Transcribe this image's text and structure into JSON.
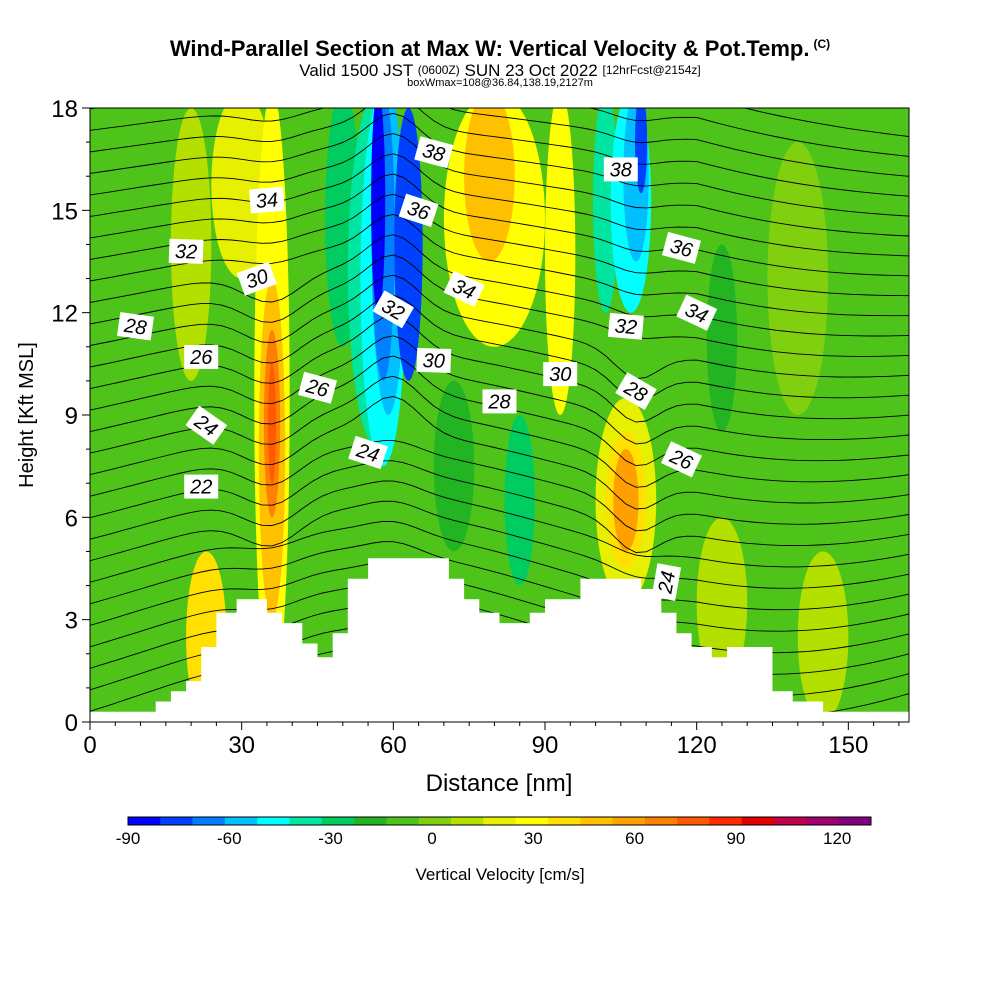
{
  "title": {
    "main": "Wind-Parallel Section at Max W: Vertical Velocity & Pot.Temp.",
    "copyright_mark": "(C)",
    "valid_prefix": "Valid 1500 JST",
    "valid_utc": "(0600Z)",
    "valid_date": "SUN 23 Oct 2022",
    "forecast_note": "[12hrFcst@2154z]",
    "box_info": "boxWmax=108@36.84,138.19,2127m"
  },
  "chart_data": {
    "type": "heatmap",
    "xlabel": "Distance [nm]",
    "ylabel": "Height [Kft MSL]",
    "xlim": [
      0,
      162
    ],
    "ylim": [
      0,
      18
    ],
    "x_ticks": [
      0,
      30,
      60,
      90,
      120,
      150
    ],
    "y_ticks": [
      0,
      3,
      6,
      9,
      12,
      15,
      18
    ],
    "grid": false,
    "colorbar": {
      "label": "Vertical Velocity [cm/s]",
      "placement": "bottom",
      "range": [
        -90,
        130
      ],
      "tick_values": [
        -90,
        -60,
        -30,
        0,
        30,
        60,
        90,
        120
      ],
      "colors": [
        "#0000ff",
        "#0040ff",
        "#0080ff",
        "#00c0ff",
        "#00ffff",
        "#00e6a0",
        "#00cc60",
        "#22b422",
        "#4ec41a",
        "#80d010",
        "#b4e000",
        "#e6f000",
        "#ffff00",
        "#ffe000",
        "#ffc000",
        "#ffa000",
        "#ff8000",
        "#ff5a00",
        "#ff2a00",
        "#e00000",
        "#c0004a",
        "#a00070",
        "#800080"
      ]
    },
    "terrain_height_kft": [
      [
        0,
        0.3
      ],
      [
        13,
        0.3
      ],
      [
        13,
        0.6
      ],
      [
        16,
        0.6
      ],
      [
        16,
        0.9
      ],
      [
        19,
        0.9
      ],
      [
        19,
        1.2
      ],
      [
        22,
        1.2
      ],
      [
        22,
        2.2
      ],
      [
        25,
        2.2
      ],
      [
        25,
        3.2
      ],
      [
        29,
        3.2
      ],
      [
        29,
        3.6
      ],
      [
        35,
        3.6
      ],
      [
        35,
        3.2
      ],
      [
        38,
        3.2
      ],
      [
        38,
        2.9
      ],
      [
        42,
        2.9
      ],
      [
        42,
        2.3
      ],
      [
        45,
        2.3
      ],
      [
        45,
        1.9
      ],
      [
        48,
        1.9
      ],
      [
        48,
        2.6
      ],
      [
        51,
        2.6
      ],
      [
        51,
        4.2
      ],
      [
        55,
        4.2
      ],
      [
        55,
        4.8
      ],
      [
        71,
        4.8
      ],
      [
        71,
        4.2
      ],
      [
        74,
        4.2
      ],
      [
        74,
        3.6
      ],
      [
        77,
        3.6
      ],
      [
        77,
        3.2
      ],
      [
        81,
        3.2
      ],
      [
        81,
        2.9
      ],
      [
        87,
        2.9
      ],
      [
        87,
        3.2
      ],
      [
        90,
        3.2
      ],
      [
        90,
        3.6
      ],
      [
        97,
        3.6
      ],
      [
        97,
        4.2
      ],
      [
        109,
        4.2
      ],
      [
        109,
        3.9
      ],
      [
        113,
        3.9
      ],
      [
        113,
        3.2
      ],
      [
        116,
        3.2
      ],
      [
        116,
        2.6
      ],
      [
        119,
        2.6
      ],
      [
        119,
        2.2
      ],
      [
        123,
        2.2
      ],
      [
        123,
        1.9
      ],
      [
        126,
        1.9
      ],
      [
        126,
        2.2
      ],
      [
        135,
        2.2
      ],
      [
        135,
        0.9
      ],
      [
        139,
        0.9
      ],
      [
        139,
        0.6
      ],
      [
        145,
        0.6
      ],
      [
        145,
        0.3
      ],
      [
        162,
        0.3
      ]
    ],
    "updraft_cores": [
      {
        "x": 36,
        "y_range": [
          3.5,
          12
        ],
        "peak_cm_s": 100
      },
      {
        "x": 106,
        "y_range": [
          4.5,
          8.5
        ],
        "peak_cm_s": 60
      },
      {
        "x": 80,
        "y_range": [
          13,
          18
        ],
        "peak_cm_s": 45
      }
    ],
    "downdraft_cores": [
      {
        "x": 58,
        "y_range": [
          9,
          18
        ],
        "peak_cm_s": -90
      },
      {
        "x": 110,
        "y_range": [
          14,
          18
        ],
        "peak_cm_s": -80
      }
    ],
    "max_w": {
      "value_cm_s": 108,
      "lat": 36.84,
      "lon": 138.19,
      "height_m": 2127
    },
    "theta_contour_labels": [
      {
        "text": "38",
        "x": 68,
        "y": 16.7
      },
      {
        "text": "38",
        "x": 105,
        "y": 16.2
      },
      {
        "text": "34",
        "x": 35,
        "y": 15.3
      },
      {
        "text": "36",
        "x": 65,
        "y": 15.0
      },
      {
        "text": "32",
        "x": 19,
        "y": 13.8
      },
      {
        "text": "36",
        "x": 117,
        "y": 13.9
      },
      {
        "text": "30",
        "x": 33,
        "y": 13.0
      },
      {
        "text": "34",
        "x": 74,
        "y": 12.7
      },
      {
        "text": "28",
        "x": 9,
        "y": 11.6
      },
      {
        "text": "32",
        "x": 60,
        "y": 12.1
      },
      {
        "text": "34",
        "x": 120,
        "y": 12.0
      },
      {
        "text": "32",
        "x": 106,
        "y": 11.6
      },
      {
        "text": "26",
        "x": 22,
        "y": 10.7
      },
      {
        "text": "30",
        "x": 68,
        "y": 10.6
      },
      {
        "text": "30",
        "x": 93,
        "y": 10.2
      },
      {
        "text": "26",
        "x": 45,
        "y": 9.8
      },
      {
        "text": "28",
        "x": 108,
        "y": 9.7
      },
      {
        "text": "28",
        "x": 81,
        "y": 9.4
      },
      {
        "text": "24",
        "x": 23,
        "y": 8.7
      },
      {
        "text": "24",
        "x": 55,
        "y": 7.9
      },
      {
        "text": "26",
        "x": 117,
        "y": 7.7
      },
      {
        "text": "22",
        "x": 22,
        "y": 6.9
      },
      {
        "text": "24",
        "x": 114,
        "y": 4.1
      }
    ]
  }
}
